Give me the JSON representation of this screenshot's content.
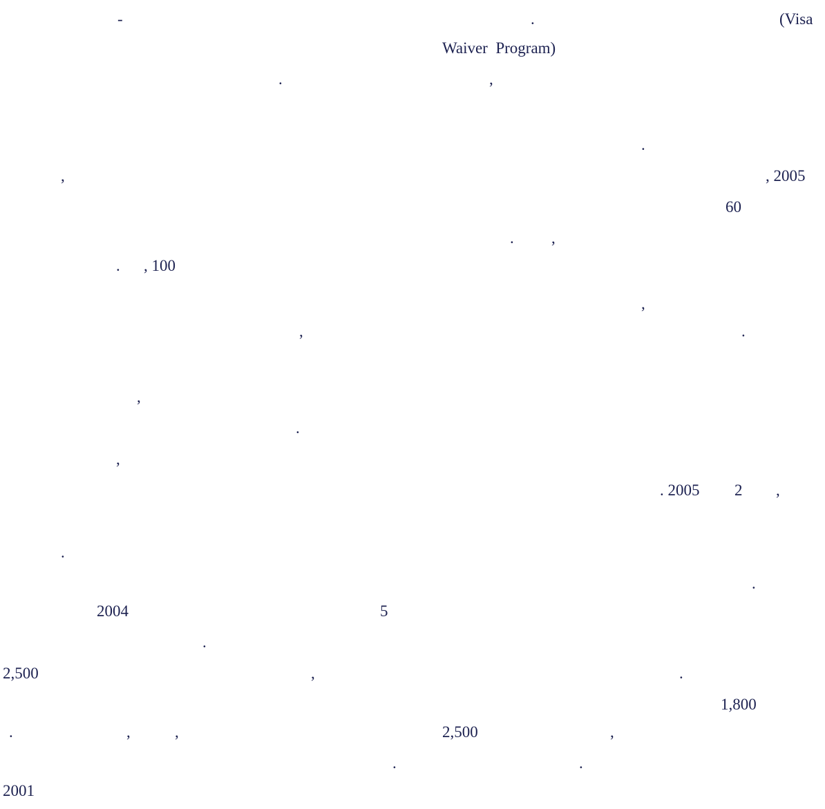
{
  "fragments": [
    "-",
    ".",
    "(Visa",
    "Waiver  Program)",
    ".",
    ",",
    ".",
    ",",
    ", 2005",
    "60",
    ".",
    ",",
    ".",
    ", 100",
    ",",
    ",",
    ".",
    ",",
    ".",
    ",",
    ". 2005",
    "2",
    ",",
    ".",
    ".",
    "2004",
    "5",
    ".",
    "2,500",
    ",",
    ".",
    "1,800",
    ".",
    ",",
    ",",
    "2,500",
    ",",
    ".",
    ".",
    "2001"
  ]
}
